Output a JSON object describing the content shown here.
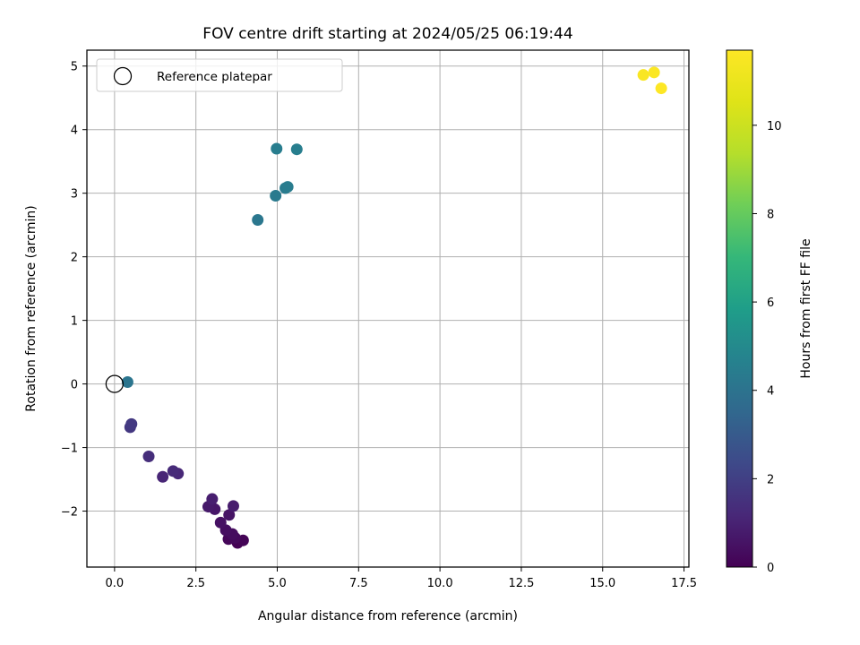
{
  "chart_data": {
    "type": "scatter",
    "title": "FOV centre drift starting at 2024/05/25 06:19:44",
    "xlabel": "Angular distance from reference (arcmin)",
    "ylabel": "Rotation from reference (arcmin)",
    "xlim": [
      -0.85,
      17.65
    ],
    "ylim": [
      -2.88,
      5.25
    ],
    "x_ticks": [
      0.0,
      2.5,
      5.0,
      7.5,
      10.0,
      12.5,
      15.0,
      17.5
    ],
    "x_tick_labels": [
      "0.0",
      "2.5",
      "5.0",
      "7.5",
      "10.0",
      "12.5",
      "15.0",
      "17.5"
    ],
    "y_ticks": [
      -2,
      -1,
      0,
      1,
      2,
      3,
      4,
      5
    ],
    "y_tick_labels": [
      "−2",
      "−1",
      "0",
      "1",
      "2",
      "3",
      "4",
      "5"
    ],
    "grid": true,
    "legend": {
      "placement": "top-left",
      "entries": [
        "Reference platepar"
      ]
    },
    "reference_point": {
      "x": 0.0,
      "y": 0.0,
      "name": "Reference platepar"
    },
    "colorbar": {
      "label": "Hours from first FF file",
      "colormap": "viridis",
      "range": [
        0,
        11.7
      ],
      "ticks": [
        0,
        2,
        4,
        6,
        8,
        10
      ],
      "tick_labels": [
        "0",
        "2",
        "4",
        "6",
        "8",
        "10"
      ]
    },
    "points": [
      {
        "x": 3.78,
        "y": -2.5,
        "hours": 0.0
      },
      {
        "x": 3.95,
        "y": -2.46,
        "hours": 0.08
      },
      {
        "x": 3.5,
        "y": -2.44,
        "hours": 0.16
      },
      {
        "x": 3.7,
        "y": -2.42,
        "hours": 0.24
      },
      {
        "x": 3.62,
        "y": -2.36,
        "hours": 0.32
      },
      {
        "x": 3.42,
        "y": -2.3,
        "hours": 0.4
      },
      {
        "x": 3.26,
        "y": -2.18,
        "hours": 0.48
      },
      {
        "x": 3.52,
        "y": -2.06,
        "hours": 0.56
      },
      {
        "x": 3.08,
        "y": -1.97,
        "hours": 0.64
      },
      {
        "x": 2.88,
        "y": -1.93,
        "hours": 0.72
      },
      {
        "x": 3.65,
        "y": -1.92,
        "hours": 0.8
      },
      {
        "x": 3.0,
        "y": -1.81,
        "hours": 0.88
      },
      {
        "x": 1.48,
        "y": -1.46,
        "hours": 1.1
      },
      {
        "x": 1.95,
        "y": -1.41,
        "hours": 1.18
      },
      {
        "x": 1.8,
        "y": -1.37,
        "hours": 1.26
      },
      {
        "x": 1.05,
        "y": -1.14,
        "hours": 1.4
      },
      {
        "x": 0.48,
        "y": -0.68,
        "hours": 1.7
      },
      {
        "x": 0.52,
        "y": -0.63,
        "hours": 1.78
      },
      {
        "x": 0.4,
        "y": 0.03,
        "hours": 4.1
      },
      {
        "x": 4.4,
        "y": 2.58,
        "hours": 4.2
      },
      {
        "x": 4.95,
        "y": 2.96,
        "hours": 4.3
      },
      {
        "x": 5.25,
        "y": 3.08,
        "hours": 4.35
      },
      {
        "x": 5.32,
        "y": 3.1,
        "hours": 4.4
      },
      {
        "x": 4.98,
        "y": 3.7,
        "hours": 4.45
      },
      {
        "x": 5.6,
        "y": 3.69,
        "hours": 4.5
      },
      {
        "x": 16.25,
        "y": 4.86,
        "hours": 11.55
      },
      {
        "x": 16.58,
        "y": 4.9,
        "hours": 11.62
      },
      {
        "x": 16.8,
        "y": 4.65,
        "hours": 11.7
      }
    ]
  }
}
